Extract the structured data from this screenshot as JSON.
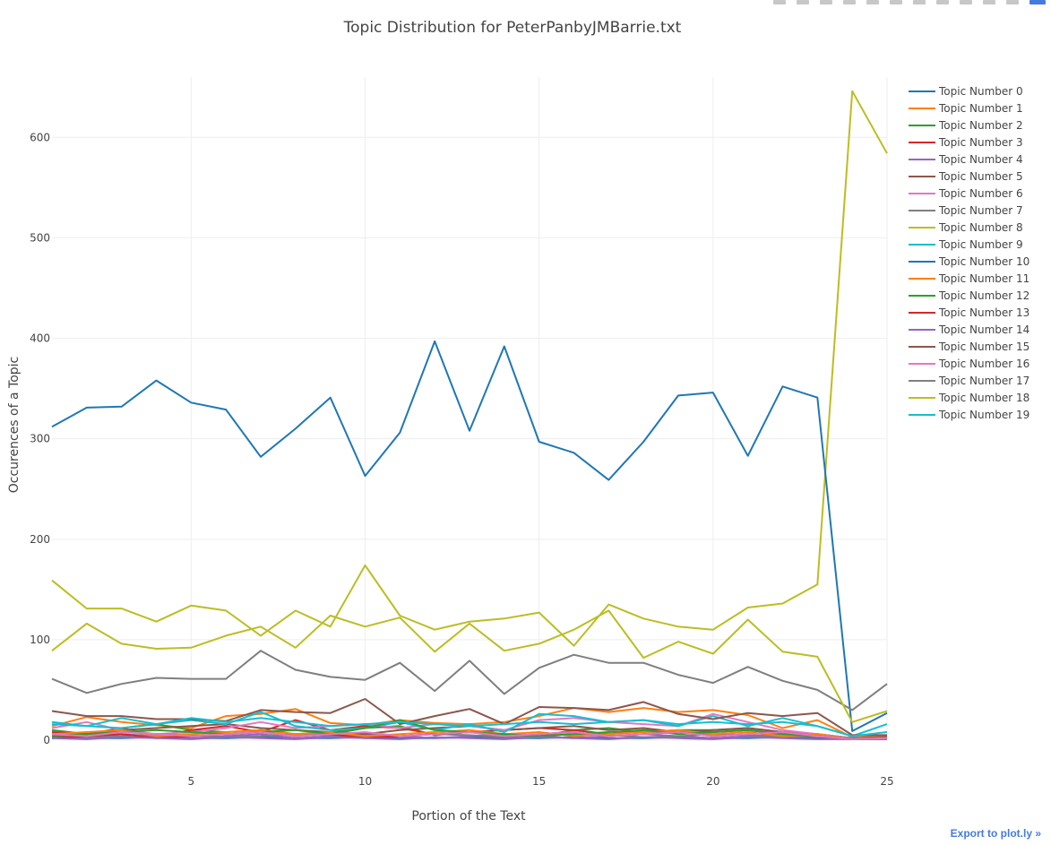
{
  "page": {
    "export_label": "Export to plot.ly »",
    "modebar_icons": [
      "camera-icon",
      "save-icon",
      "zoom-icon",
      "pan-icon",
      "zoom-in-icon",
      "zoom-out-icon",
      "autoscale-icon",
      "reset-icon",
      "spike-icon",
      "hover-closest-icon",
      "hover-compare-icon",
      "plotly-logo-icon"
    ]
  },
  "chart_data": {
    "type": "line",
    "title": "Topic Distribution for PeterPanbyJMBarrie.txt",
    "xlabel": "Portion of the Text",
    "ylabel": "Occurences of a Topic",
    "xlim": [
      1,
      25
    ],
    "ylim": [
      0,
      660
    ],
    "xticks": [
      5,
      10,
      15,
      20,
      25
    ],
    "yticks": [
      0,
      100,
      200,
      300,
      400,
      500,
      600
    ],
    "grid": true,
    "legend_position": "top-right",
    "x": [
      1,
      2,
      3,
      4,
      5,
      6,
      7,
      8,
      9,
      10,
      11,
      12,
      13,
      14,
      15,
      16,
      17,
      18,
      19,
      20,
      21,
      22,
      23,
      24,
      25
    ],
    "series": [
      {
        "name": "Topic Number 0",
        "color": "#1f77b4",
        "values": [
          3,
          2,
          2,
          3,
          2,
          2,
          3,
          2,
          2,
          3,
          2,
          2,
          3,
          2,
          2,
          3,
          2,
          2,
          3,
          2,
          2,
          3,
          2,
          1,
          1
        ]
      },
      {
        "name": "Topic Number 1",
        "color": "#ff7f0e",
        "values": [
          14,
          23,
          18,
          15,
          12,
          24,
          26,
          31,
          17,
          15,
          20,
          17,
          16,
          18,
          24,
          32,
          28,
          32,
          28,
          30,
          25,
          12,
          20,
          3,
          5
        ]
      },
      {
        "name": "Topic Number 2",
        "color": "#2ca02c",
        "values": [
          10,
          6,
          12,
          16,
          10,
          8,
          10,
          6,
          8,
          12,
          14,
          5,
          8,
          6,
          4,
          10,
          12,
          8,
          10,
          10,
          12,
          8,
          6,
          2,
          3
        ]
      },
      {
        "name": "Topic Number 3",
        "color": "#d62728",
        "values": [
          8,
          6,
          12,
          4,
          10,
          14,
          8,
          20,
          10,
          14,
          12,
          6,
          8,
          10,
          12,
          10,
          6,
          10,
          8,
          8,
          10,
          6,
          4,
          2,
          3
        ]
      },
      {
        "name": "Topic Number 4",
        "color": "#9467bd",
        "values": [
          4,
          2,
          6,
          4,
          2,
          4,
          6,
          2,
          4,
          6,
          4,
          2,
          4,
          6,
          4,
          2,
          4,
          6,
          4,
          2,
          4,
          6,
          4,
          1,
          2
        ]
      },
      {
        "name": "Topic Number 5",
        "color": "#8c564b",
        "values": [
          6,
          6,
          10,
          12,
          14,
          16,
          12,
          10,
          8,
          6,
          10,
          12,
          14,
          10,
          12,
          14,
          10,
          12,
          8,
          10,
          12,
          8,
          6,
          2,
          3
        ]
      },
      {
        "name": "Topic Number 6",
        "color": "#e377c2",
        "values": [
          12,
          18,
          10,
          6,
          8,
          12,
          18,
          12,
          14,
          16,
          12,
          16,
          14,
          10,
          20,
          22,
          18,
          16,
          14,
          26,
          18,
          10,
          6,
          2,
          2
        ]
      },
      {
        "name": "Topic Number 7",
        "color": "#7f7f7f",
        "values": [
          5,
          3,
          4,
          6,
          5,
          3,
          4,
          6,
          5,
          3,
          4,
          6,
          5,
          3,
          4,
          6,
          5,
          3,
          4,
          6,
          5,
          3,
          4,
          2,
          2
        ]
      },
      {
        "name": "Topic Number 8",
        "color": "#bcbd22",
        "values": [
          159,
          131,
          131,
          118,
          134,
          129,
          104,
          129,
          113,
          174,
          124,
          110,
          118,
          121,
          127,
          94,
          135,
          121,
          113,
          110,
          132,
          136,
          155,
          646,
          584
        ]
      },
      {
        "name": "Topic Number 9",
        "color": "#17becf",
        "values": [
          18,
          14,
          22,
          16,
          20,
          16,
          28,
          14,
          10,
          12,
          18,
          10,
          16,
          8,
          26,
          24,
          18,
          20,
          14,
          24,
          14,
          22,
          14,
          4,
          16
        ]
      },
      {
        "name": "Topic Number 10",
        "color": "#1f77b4",
        "values": [
          312,
          331,
          332,
          358,
          336,
          329,
          282,
          310,
          341,
          263,
          306,
          397,
          308,
          392,
          297,
          286,
          259,
          297,
          343,
          346,
          283,
          352,
          341,
          9,
          27
        ]
      },
      {
        "name": "Topic Number 11",
        "color": "#ff7f0e",
        "values": [
          6,
          8,
          10,
          4,
          6,
          8,
          10,
          6,
          8,
          4,
          6,
          8,
          10,
          6,
          8,
          4,
          6,
          8,
          10,
          6,
          8,
          4,
          6,
          1,
          2
        ]
      },
      {
        "name": "Topic Number 12",
        "color": "#2ca02c",
        "values": [
          4,
          6,
          8,
          10,
          8,
          6,
          8,
          10,
          6,
          12,
          20,
          10,
          8,
          6,
          4,
          6,
          8,
          10,
          6,
          8,
          10,
          6,
          4,
          1,
          2
        ]
      },
      {
        "name": "Topic Number 13",
        "color": "#d62728",
        "values": [
          2,
          4,
          6,
          2,
          4,
          6,
          8,
          4,
          6,
          2,
          4,
          6,
          8,
          4,
          6,
          8,
          4,
          6,
          8,
          4,
          6,
          8,
          4,
          1,
          2
        ]
      },
      {
        "name": "Topic Number 14",
        "color": "#9467bd",
        "values": [
          2,
          1,
          3,
          2,
          1,
          3,
          2,
          1,
          3,
          2,
          1,
          3,
          2,
          1,
          3,
          2,
          1,
          3,
          2,
          1,
          3,
          2,
          1,
          1,
          1
        ]
      },
      {
        "name": "Topic Number 15",
        "color": "#8c564b",
        "values": [
          29,
          24,
          24,
          21,
          21,
          19,
          30,
          28,
          27,
          41,
          16,
          24,
          31,
          16,
          33,
          32,
          30,
          38,
          26,
          21,
          27,
          24,
          27,
          5,
          5
        ]
      },
      {
        "name": "Topic Number 16",
        "color": "#e377c2",
        "values": [
          6,
          4,
          8,
          6,
          4,
          6,
          8,
          4,
          6,
          8,
          4,
          6,
          8,
          4,
          6,
          8,
          4,
          6,
          8,
          4,
          6,
          8,
          4,
          1,
          2
        ]
      },
      {
        "name": "Topic Number 17",
        "color": "#7f7f7f",
        "values": [
          61,
          47,
          56,
          62,
          61,
          61,
          89,
          70,
          63,
          60,
          77,
          49,
          79,
          46,
          72,
          85,
          77,
          77,
          65,
          57,
          73,
          59,
          50,
          30,
          56
        ]
      },
      {
        "name": "Topic Number 18",
        "color": "#bcbd22",
        "values": [
          89,
          116,
          96,
          91,
          92,
          104,
          113,
          92,
          124,
          113,
          122,
          88,
          116,
          89,
          96,
          110,
          129,
          82,
          98,
          86,
          120,
          88,
          83,
          18,
          29
        ]
      },
      {
        "name": "Topic Number 19",
        "color": "#17becf",
        "values": [
          16,
          14,
          12,
          16,
          22,
          18,
          22,
          18,
          14,
          16,
          18,
          16,
          14,
          16,
          18,
          16,
          18,
          20,
          16,
          18,
          16,
          18,
          14,
          4,
          8
        ]
      }
    ]
  }
}
